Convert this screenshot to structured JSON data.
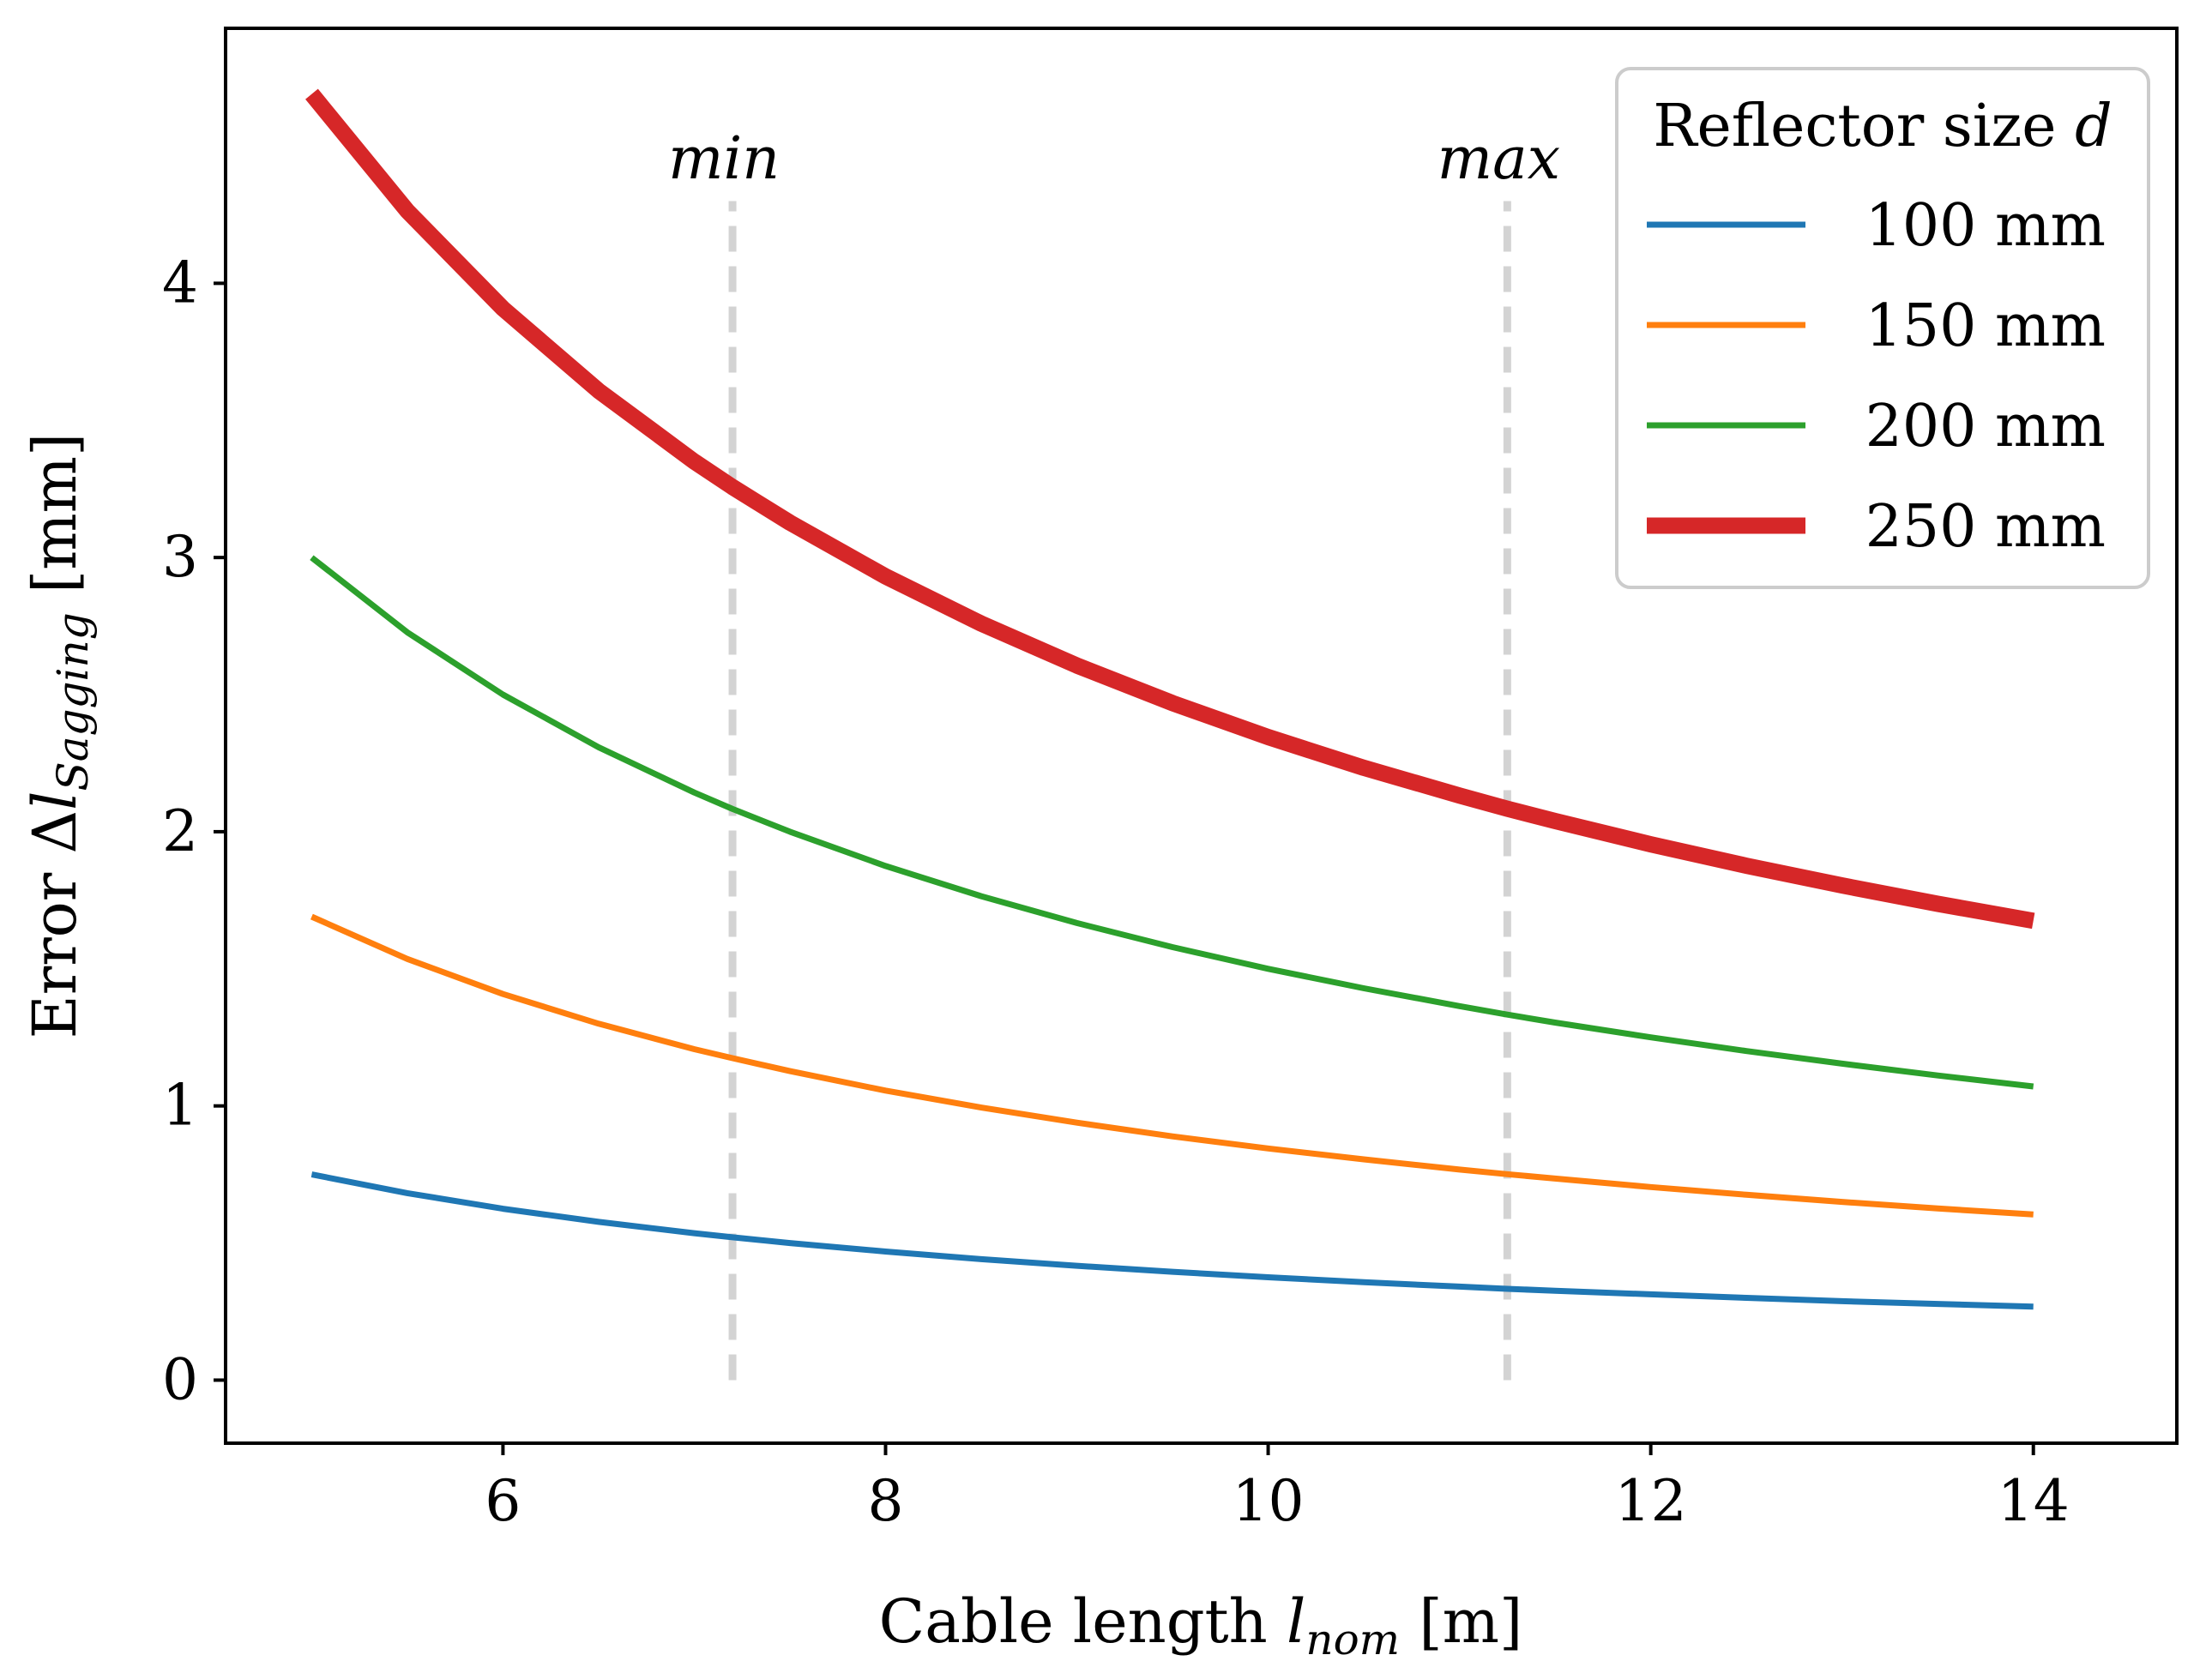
{
  "chart_data": {
    "type": "line",
    "xlabel": {
      "prefix": "Cable length ",
      "var": "l",
      "sub": "nom",
      "suffix": " [m]"
    },
    "ylabel": {
      "prefix": "Error Δ",
      "var": "l",
      "sub": "Sagging",
      "suffix": " [mm]"
    },
    "xlim": [
      4.55,
      14.75
    ],
    "ylim": [
      -0.23,
      4.93
    ],
    "xticks": [
      6,
      8,
      10,
      12,
      14
    ],
    "xtick_labels": [
      "6",
      "8",
      "10",
      "12",
      "14"
    ],
    "yticks": [
      0,
      1,
      2,
      3,
      4
    ],
    "ytick_labels": [
      "0",
      "1",
      "2",
      "3",
      "4"
    ],
    "x": [
      5,
      5.5,
      6,
      6.5,
      7,
      7.2,
      7.5,
      8,
      8.5,
      9,
      9.5,
      10,
      10.5,
      11,
      11.25,
      11.5,
      12,
      12.5,
      13,
      13.5,
      14
    ],
    "series": [
      {
        "name": "100 mm",
        "color": "#1f77b4",
        "width": "normal",
        "values": [
          0.75,
          0.682,
          0.625,
          0.577,
          0.536,
          0.521,
          0.5,
          0.469,
          0.441,
          0.417,
          0.395,
          0.375,
          0.357,
          0.341,
          0.333,
          0.326,
          0.313,
          0.3,
          0.288,
          0.278,
          0.268
        ]
      },
      {
        "name": "150 mm",
        "color": "#ff7f0e",
        "width": "normal",
        "values": [
          1.69,
          1.536,
          1.408,
          1.3,
          1.207,
          1.174,
          1.127,
          1.056,
          0.994,
          0.939,
          0.889,
          0.845,
          0.805,
          0.768,
          0.751,
          0.735,
          0.704,
          0.676,
          0.65,
          0.626,
          0.604
        ]
      },
      {
        "name": "200 mm",
        "color": "#2ca02c",
        "width": "normal",
        "values": [
          3.0,
          2.727,
          2.5,
          2.308,
          2.143,
          2.083,
          2.0,
          1.875,
          1.765,
          1.667,
          1.579,
          1.5,
          1.429,
          1.364,
          1.333,
          1.304,
          1.25,
          1.2,
          1.154,
          1.111,
          1.071
        ]
      },
      {
        "name": "250 mm",
        "color": "#d62728",
        "width": "thick",
        "values": [
          4.69,
          4.264,
          3.908,
          3.608,
          3.35,
          3.257,
          3.127,
          2.931,
          2.759,
          2.606,
          2.469,
          2.345,
          2.233,
          2.132,
          2.084,
          2.039,
          1.954,
          1.876,
          1.804,
          1.737,
          1.675
        ]
      }
    ],
    "vlines": [
      {
        "x": 7.2,
        "label": "min",
        "color": "#d3d3d3",
        "y_from": 0,
        "y_to": 4.3
      },
      {
        "x": 11.25,
        "label": "max",
        "color": "#d3d3d3",
        "y_from": 0,
        "y_to": 4.3
      }
    ],
    "legend": {
      "title_prefix": "Reflector size ",
      "title_var": "d",
      "placement": "top-right"
    },
    "grid": false
  }
}
